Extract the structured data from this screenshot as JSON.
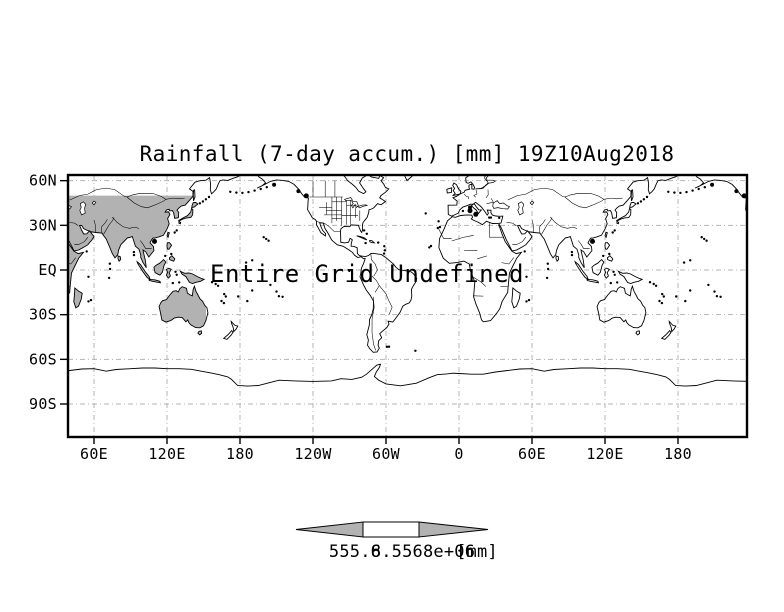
{
  "title": "Rainfall (7-day accum.) [mm] 19Z10Aug2018",
  "message": "Entire Grid Undefined",
  "x_axis": {
    "ticks": [
      {
        "label": "60E",
        "lon": 60
      },
      {
        "label": "120E",
        "lon": 120
      },
      {
        "label": "180",
        "lon": 180
      },
      {
        "label": "120W",
        "lon": 240
      },
      {
        "label": "60W",
        "lon": 300
      },
      {
        "label": "0",
        "lon": 360
      },
      {
        "label": "60E",
        "lon": 420
      },
      {
        "label": "120E",
        "lon": 480
      },
      {
        "label": "180",
        "lon": 540
      }
    ]
  },
  "y_axis": {
    "ticks": [
      {
        "label": "60N",
        "lat": 60
      },
      {
        "label": "30N",
        "lat": 30
      },
      {
        "label": "EQ",
        "lat": 0
      },
      {
        "label": "30S",
        "lat": -30
      },
      {
        "label": "60S",
        "lat": -60
      },
      {
        "label": "90S",
        "lat": -90
      }
    ]
  },
  "colorbar": {
    "min_label": "555.6",
    "max_label": "8.5568e+06",
    "units": "[mm]"
  },
  "colors": {
    "shade": "#b2b2b2",
    "grid": "#b4b4b4",
    "message": "#a0a0a0",
    "coast": "#000000",
    "frame": "#000000",
    "background": "#ffffff"
  },
  "chart_data": {
    "type": "map",
    "title": "Rainfall (7-day accum.) [mm] 19Z10Aug2018",
    "projection": "equirectangular lat-lon world map",
    "annotation": "Entire Grid Undefined",
    "x_tick_labels": [
      "60E",
      "120E",
      "180",
      "120W",
      "60W",
      "0",
      "60E",
      "120E",
      "180"
    ],
    "y_tick_labels": [
      "60N",
      "30N",
      "EQ",
      "30S",
      "60S",
      "90S"
    ],
    "lon_axis_note": "longitude axis wraps past the dateline and Greenwich; Asia and Australia are drawn twice",
    "lat_range_shown": [
      -90,
      64
    ],
    "grid": "dash-dot gray gridlines every 60 deg lon and 30 deg lat",
    "values": null,
    "undefined_grid": true,
    "shaded_region": "land areas between about 50N and 50S for the left longitude instance are filled gray",
    "colorbar": {
      "style": "single white box with gray triangular arrow ends",
      "labels": [
        "555.6",
        "8.5568e+06"
      ],
      "units": "[mm]"
    }
  }
}
